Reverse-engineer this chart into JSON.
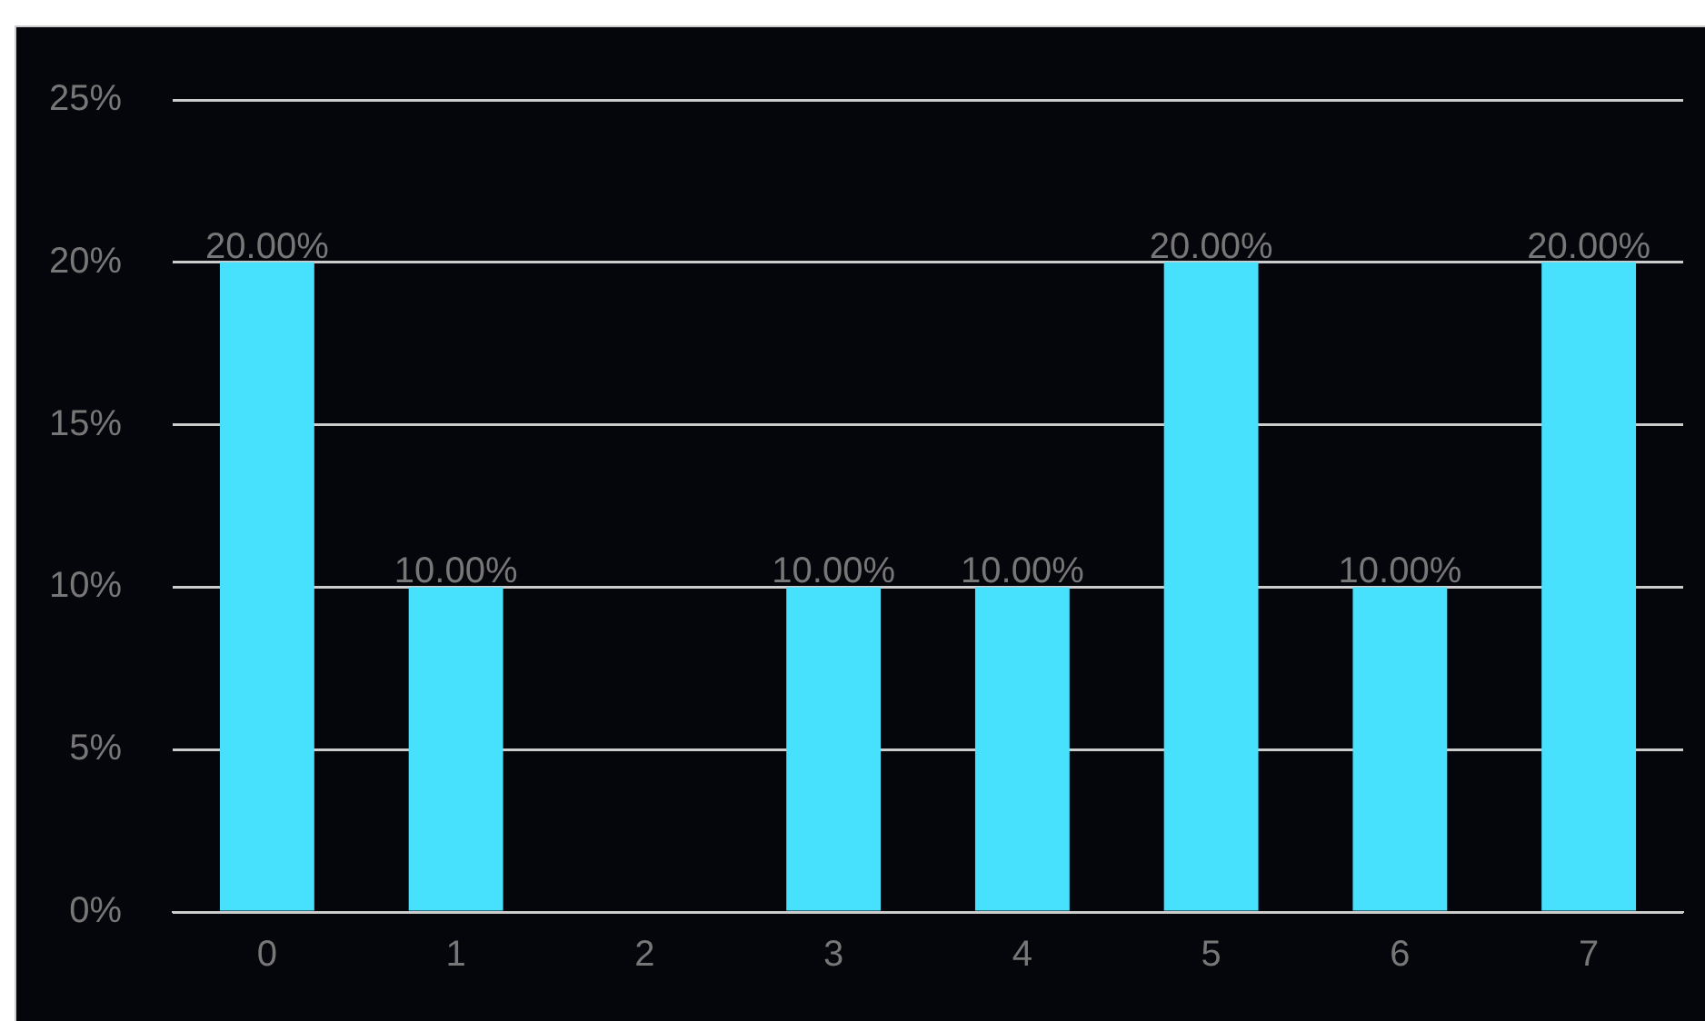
{
  "chart_data": {
    "type": "bar",
    "categories": [
      "0",
      "1",
      "2",
      "3",
      "4",
      "5",
      "6",
      "7"
    ],
    "values": [
      20,
      10,
      0,
      10,
      10,
      20,
      10,
      20
    ],
    "value_labels": [
      "20.00%",
      "10.00%",
      null,
      "10.00%",
      "10.00%",
      "20.00%",
      "10.00%",
      "20.00%"
    ],
    "color": "#47e1fe",
    "ylim": [
      0,
      25
    ],
    "yticks": [
      {
        "value": 0,
        "label": "0%"
      },
      {
        "value": 5,
        "label": "5%"
      },
      {
        "value": 10,
        "label": "10%"
      },
      {
        "value": 15,
        "label": "15%"
      },
      {
        "value": 20,
        "label": "20%"
      },
      {
        "value": 25,
        "label": "25%"
      }
    ],
    "grid": "y",
    "legend": false
  }
}
